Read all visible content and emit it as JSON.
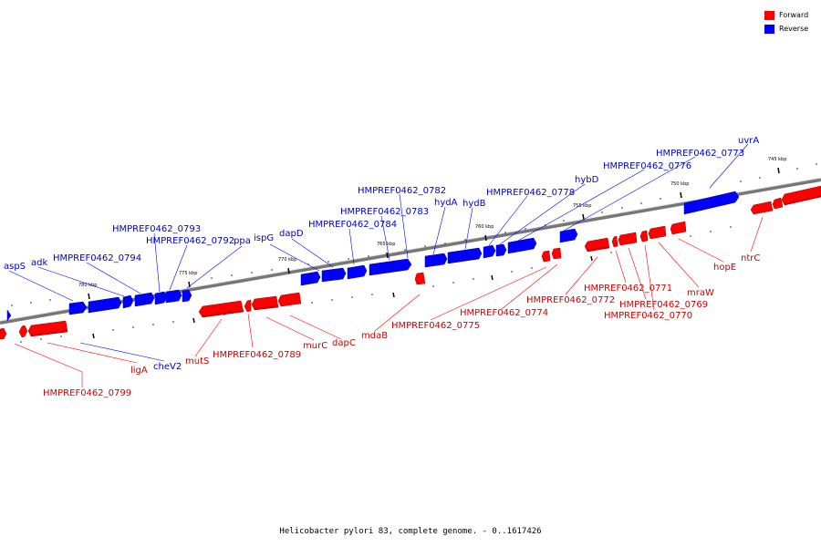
{
  "legend": [
    {
      "label": "Forward",
      "color": "#ff0000"
    },
    {
      "label": "Reverse",
      "color": "#0000ff"
    }
  ],
  "colors": {
    "forward": "#ff0000",
    "reverse": "#0000ff",
    "forward_label": "#cc0000",
    "reverse_label": "#0000cc",
    "backbone": "#777777"
  },
  "caption": "Helicobacter pylori 83, complete genome. - 0..1617426",
  "ticks": [
    "780 kbp",
    "775 kbp",
    "770 kbp",
    "765 kbp",
    "760 kbp",
    "755 kbp",
    "750 kbp",
    "745 kbp"
  ],
  "reverse_labels": [
    "aspS",
    "adk",
    "HMPREF0462_0794",
    "HMPREF0462_0793",
    "HMPREF0462_0792",
    "ppa",
    "ispG",
    "dapD",
    "HMPREF0462_0784",
    "HMPREF0462_0783",
    "HMPREF0462_0782",
    "hydA",
    "hydB",
    "HMPREF0462_0778",
    "hybD",
    "HMPREF0462_0776",
    "HMPREF0462_0773",
    "uvrA",
    "cheV2"
  ],
  "forward_labels": [
    "HMPREF0462_0799",
    "ligA",
    "mutS",
    "HMPREF0462_0789",
    "murC",
    "dapC",
    "mdaB",
    "HMPREF0462_0775",
    "HMPREF0462_0774",
    "HMPREF0462_0772",
    "HMPREF0462_0771",
    "HMPREF0462_0769",
    "HMPREF0462_0770",
    "mraW",
    "hopE",
    "ntrC"
  ]
}
